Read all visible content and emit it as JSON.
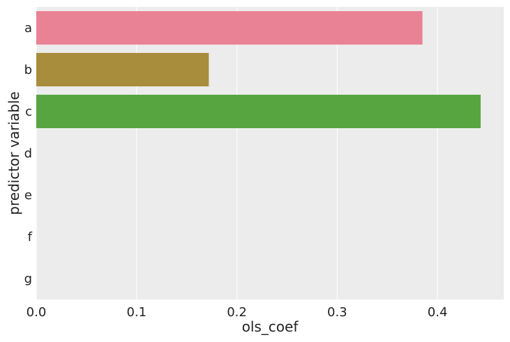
{
  "chart_data": {
    "type": "bar",
    "orientation": "horizontal",
    "title": "",
    "xlabel": "ols_coef",
    "ylabel": "predictor variable",
    "categories": [
      "a",
      "b",
      "c",
      "d",
      "e",
      "f",
      "g"
    ],
    "values": [
      0.385,
      0.172,
      0.443,
      0,
      0,
      0,
      0
    ],
    "colors": [
      "#e88294",
      "#a88d3c",
      "#56a540",
      "#3ba3a3",
      "#3ba3a3",
      "#3ba3a3",
      "#3ba3a3"
    ],
    "xlim": [
      0,
      0.466
    ],
    "xticks": [
      0.0,
      0.1,
      0.2,
      0.3,
      0.4
    ],
    "xtick_labels": [
      "0.0",
      "0.1",
      "0.2",
      "0.3",
      "0.4"
    ],
    "grid": true,
    "background": "#ececec",
    "gridline_color": "#ffffff"
  }
}
